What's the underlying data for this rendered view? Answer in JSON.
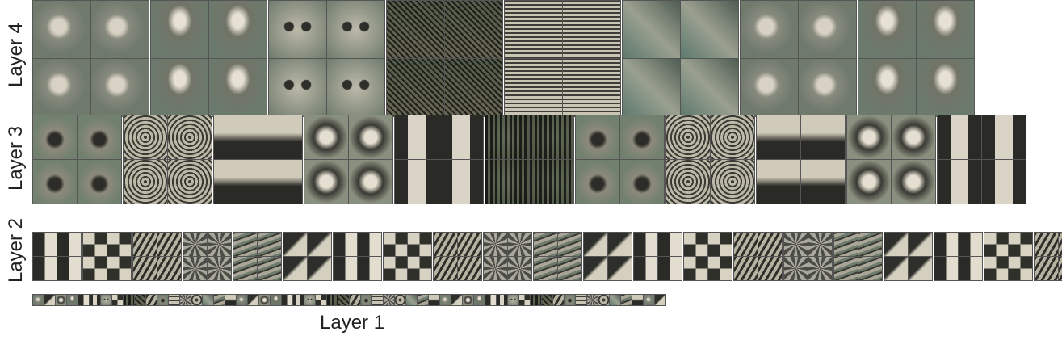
{
  "labels": {
    "layer4": "Layer 4",
    "layer3": "Layer 3",
    "layer2": "Layer 2",
    "layer1": "Layer 1"
  },
  "colors": {
    "background": "#ffffff",
    "grid_line": "#555555",
    "label_text": "#222222"
  },
  "grids": {
    "layer4": {
      "groups": 8,
      "cols_per_group": 2,
      "rows": 2
    },
    "layer3": {
      "groups": 11,
      "cols_per_group": 2,
      "rows": 2
    },
    "layer2": {
      "groups": 21,
      "cols_per_group": 2,
      "rows": 2
    },
    "layer1": {
      "groups": 1,
      "cols_per_group": 56,
      "rows": 1
    }
  }
}
